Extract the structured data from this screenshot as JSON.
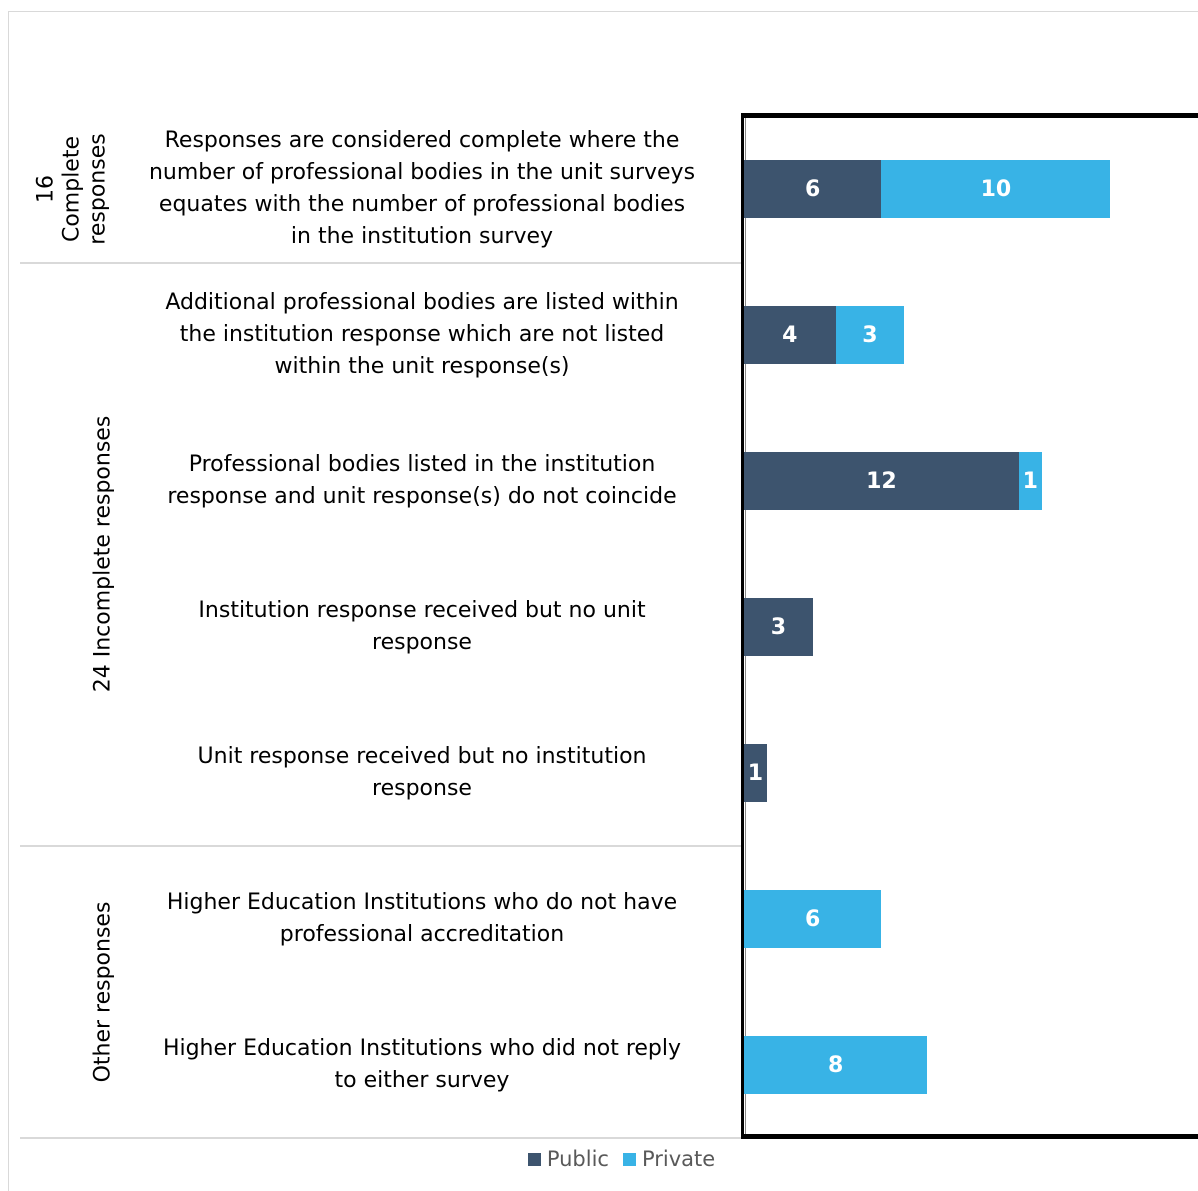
{
  "chart_data": {
    "type": "bar",
    "orientation": "horizontal",
    "stacked": true,
    "groups": [
      {
        "label_lines": [
          "16",
          "Complete",
          "responses"
        ],
        "categories": [
          0
        ]
      },
      {
        "label_lines": [
          "24 Incomplete responses"
        ],
        "categories": [
          1,
          2,
          3,
          4
        ]
      },
      {
        "label_lines": [
          "Other responses"
        ],
        "categories": [
          5,
          6
        ]
      }
    ],
    "categories": [
      "Responses are considered complete where the number of professional bodies in the unit surveys equates with the number of professional bodies in the institution survey",
      "Additional professional bodies are listed within the institution response which are not listed within the unit response(s)",
      "Professional bodies listed in the institution response and unit response(s) do not coincide",
      "Institution response received but no unit response",
      "Unit response received but no institution response",
      "Higher Education Institutions who do not have professional accreditation",
      "Higher Education Institutions who did not reply to either survey"
    ],
    "category_lines": [
      [
        "Responses are considered complete where the",
        "number of professional bodies in the unit surveys",
        "equates with the number of professional bodies",
        "in the institution survey"
      ],
      [
        "Additional professional bodies are listed within",
        "the institution response which are not listed",
        "within the unit response(s)"
      ],
      [
        "Professional bodies listed in the institution",
        "response and unit response(s) do not coincide"
      ],
      [
        "Institution response received but no unit",
        "response"
      ],
      [
        "Unit response received but no institution",
        "response"
      ],
      [
        "Higher Education Institutions who do not have",
        "professional accreditation"
      ],
      [
        "Higher Education Institutions who did not reply",
        "to either survey"
      ]
    ],
    "series": [
      {
        "name": "Public",
        "color": "#3d546e",
        "values": [
          6,
          4,
          12,
          3,
          1,
          null,
          null
        ]
      },
      {
        "name": "Private",
        "color": "#38b3e6",
        "values": [
          10,
          3,
          1,
          null,
          null,
          6,
          8
        ]
      }
    ],
    "xlim": [
      0,
      20
    ],
    "grid": false,
    "legend_position": "bottom"
  }
}
